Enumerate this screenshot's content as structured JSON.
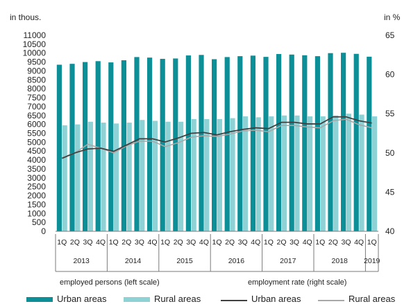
{
  "chart_data": {
    "type": "bar",
    "left_axis_unit": "in thous.",
    "right_axis_unit": "in %",
    "left_ylim": [
      0,
      11000
    ],
    "left_ticks": [
      "0",
      "500",
      "1000",
      "1500",
      "2000",
      "2500",
      "3000",
      "3500",
      "4000",
      "4500",
      "5000",
      "5500",
      "6000",
      "6500",
      "7000",
      "7500",
      "8000",
      "8500",
      "9000",
      "9500",
      "10000",
      "10500",
      "11000"
    ],
    "left_tick_values": [
      0,
      500,
      1000,
      1500,
      2000,
      2500,
      3000,
      3500,
      4000,
      4500,
      5000,
      5500,
      6000,
      6500,
      7000,
      7500,
      8000,
      8500,
      9000,
      9500,
      10000,
      10500,
      11000
    ],
    "right_ylim": [
      40,
      65
    ],
    "right_ticks": [
      "40",
      "45",
      "50",
      "55",
      "60",
      "65"
    ],
    "right_tick_values": [
      40,
      45,
      50,
      55,
      60,
      65
    ],
    "quarters": [
      "1Q",
      "2Q",
      "3Q",
      "4Q",
      "1Q",
      "2Q",
      "3Q",
      "4Q",
      "1Q",
      "2Q",
      "3Q",
      "4Q",
      "1Q",
      "2Q",
      "3Q",
      "4Q",
      "1Q",
      "2Q",
      "3Q",
      "4Q",
      "1Q",
      "2Q",
      "3Q",
      "4Q",
      "1Q"
    ],
    "years": [
      "2013",
      "2014",
      "2015",
      "2016",
      "2017",
      "2018",
      "2019"
    ],
    "year_spans": [
      4,
      4,
      4,
      4,
      4,
      4,
      1
    ],
    "grid": false,
    "series": [
      {
        "name": "Urban areas",
        "type": "bar",
        "axis": "left",
        "color": "#0d8f97",
        "values": [
          9350,
          9400,
          9500,
          9550,
          9480,
          9600,
          9780,
          9750,
          9680,
          9700,
          9870,
          9900,
          9660,
          9780,
          9830,
          9860,
          9790,
          9950,
          9920,
          9880,
          9830,
          10000,
          10020,
          9960,
          9800
        ]
      },
      {
        "name": "Rural areas",
        "type": "bar",
        "axis": "left",
        "color": "#8ed2d6",
        "values": [
          5950,
          6000,
          6150,
          6100,
          6050,
          6100,
          6250,
          6200,
          6150,
          6150,
          6300,
          6300,
          6300,
          6350,
          6450,
          6400,
          6450,
          6500,
          6500,
          6450,
          6450,
          6500,
          6600,
          6550,
          6450
        ]
      },
      {
        "name": "Urban areas",
        "type": "line",
        "axis": "right",
        "color": "#404040",
        "values": [
          49.3,
          50.0,
          50.5,
          50.6,
          50.2,
          51.0,
          51.8,
          51.8,
          51.4,
          51.9,
          52.5,
          52.6,
          52.3,
          52.7,
          53.0,
          53.2,
          53.1,
          53.9,
          53.9,
          53.7,
          53.7,
          54.6,
          54.6,
          54.1,
          53.8
        ]
      },
      {
        "name": "Rural areas",
        "type": "line",
        "axis": "right",
        "color": "#a8a8a8",
        "values": [
          49.4,
          50.0,
          51.1,
          50.6,
          50.0,
          50.9,
          51.5,
          51.5,
          50.8,
          51.3,
          52.0,
          52.2,
          52.1,
          52.4,
          52.8,
          52.9,
          52.7,
          53.5,
          53.5,
          53.3,
          53.2,
          54.1,
          54.3,
          53.6,
          53.2
        ]
      }
    ],
    "left_caption": "employed persons (left scale)",
    "right_caption": "employment rate (right scale)"
  }
}
